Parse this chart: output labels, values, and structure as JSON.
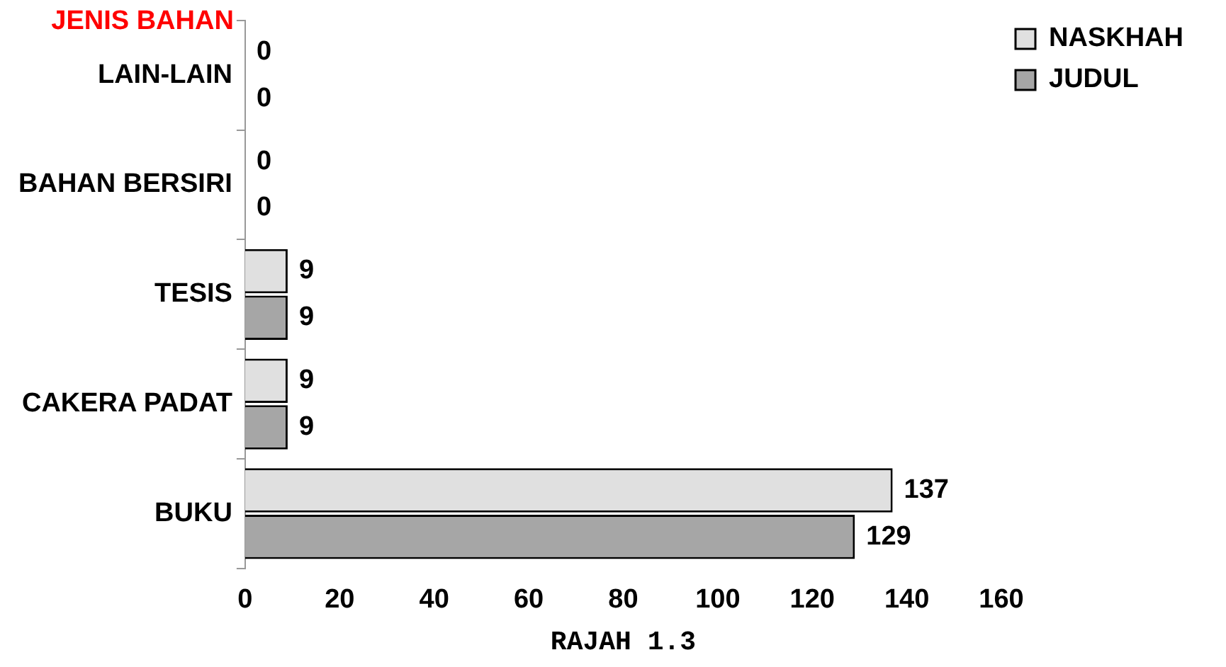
{
  "chart_data": {
    "type": "bar",
    "orientation": "horizontal",
    "ylabel": "JENIS BAHAN",
    "xlabel": "RAJAH 1.3",
    "categories": [
      "LAIN-LAIN",
      "BAHAN BERSIRI",
      "TESIS",
      "CAKERA PADAT",
      "BUKU"
    ],
    "series": [
      {
        "name": "NASKHAH",
        "color": "#e0e0e0",
        "values": [
          0,
          0,
          9,
          9,
          137
        ]
      },
      {
        "name": "JUDUL",
        "color": "#a6a6a6",
        "values": [
          0,
          0,
          9,
          9,
          129
        ]
      }
    ],
    "xlim": [
      0,
      160
    ],
    "xticks": [
      0,
      20,
      40,
      60,
      80,
      100,
      120,
      140,
      160
    ],
    "data_labels": true,
    "legend": "top right",
    "grid": false
  }
}
